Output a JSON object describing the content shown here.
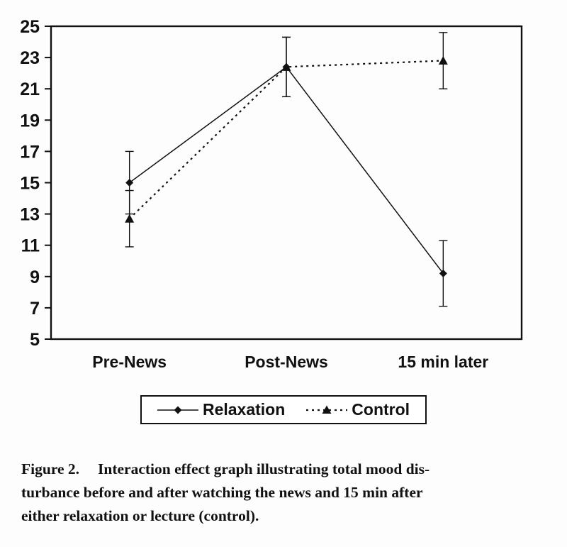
{
  "figure": {
    "caption": {
      "label": "Figure 2.",
      "lines": [
        "Interaction effect graph illustrating total mood dis-",
        "turbance before and after watching the news and 15 min after",
        "either relaxation or lecture (control)."
      ]
    }
  },
  "chart_data": {
    "type": "line",
    "title": "",
    "xlabel": "",
    "ylabel": "",
    "categories": [
      "Pre-News",
      "Post-News",
      "15 min later"
    ],
    "series": [
      {
        "name": "Relaxation",
        "marker": "diamond",
        "line": "solid",
        "values": [
          15.0,
          22.4,
          9.2
        ],
        "errors": [
          2.0,
          1.9,
          2.1
        ]
      },
      {
        "name": "Control",
        "marker": "triangle",
        "line": "dashed",
        "values": [
          12.7,
          22.4,
          22.8
        ],
        "errors": [
          1.8,
          1.9,
          1.8
        ]
      }
    ],
    "ylim": [
      5,
      25
    ],
    "yticks": [
      5,
      7,
      9,
      11,
      13,
      15,
      17,
      19,
      21,
      23,
      25
    ],
    "grid": false,
    "legend_position": "bottom",
    "colors": {
      "line": "#111111",
      "background": "#ffffff"
    }
  }
}
